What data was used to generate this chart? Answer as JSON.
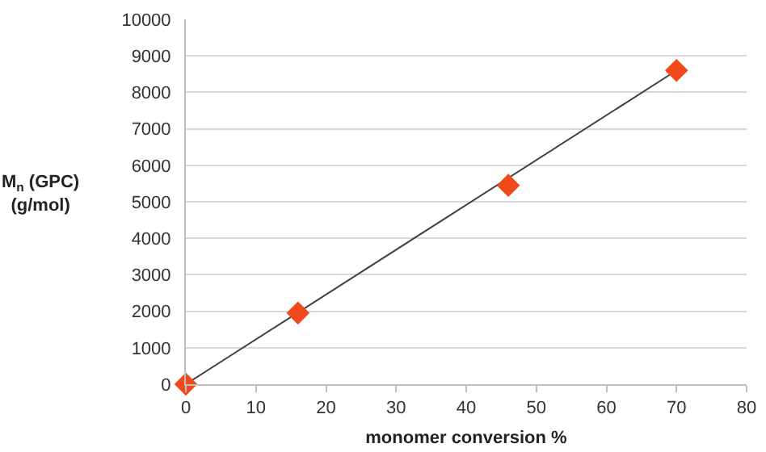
{
  "chart_data": {
    "type": "scatter",
    "xlabel": "monomer conversion %",
    "ylabel": "M$_{n}$ (GPC) (g/mol)",
    "x": [
      0,
      16,
      46,
      70
    ],
    "series": [
      {
        "color": "#f04a1c",
        "marker": "diamond",
        "values": [
          0,
          1950,
          5450,
          8600
        ]
      },
      {
        "type": "line",
        "color": "#404040",
        "marker": "none",
        "x": [
          0,
          70
        ],
        "values": [
          0,
          8600
        ]
      }
    ],
    "xlim": [
      0,
      80
    ],
    "xticks": [
      0,
      10,
      20,
      30,
      40,
      50,
      60,
      70,
      80
    ],
    "ylim": [
      0,
      10000
    ],
    "yticks": [
      0,
      1000,
      2000,
      3000,
      4000,
      5000,
      6000,
      7000,
      8000,
      9000,
      10000
    ],
    "grid": "y",
    "line_style": "solid"
  }
}
